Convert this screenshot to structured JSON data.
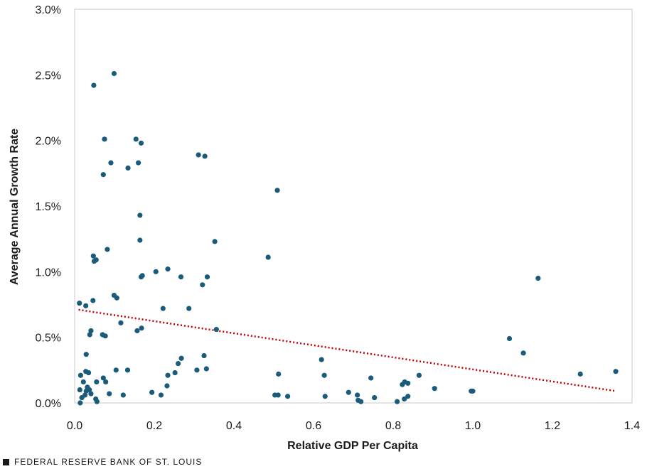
{
  "chart_data": {
    "type": "scatter",
    "xlabel": "Relative GDP Per Capita",
    "ylabel": "Average Annual Growth Rate",
    "xlim": [
      0,
      1.4
    ],
    "ylim": [
      0,
      3.0
    ],
    "x_ticks": [
      0,
      0.2,
      0.4,
      0.6,
      0.8,
      1.0,
      1.2,
      1.4
    ],
    "x_tick_labels": [
      "0.0",
      "0.2",
      "0.4",
      "0.6",
      "0.8",
      "1.0",
      "1.2",
      "1.4"
    ],
    "y_ticks": [
      0,
      0.5,
      1.0,
      1.5,
      2.0,
      2.5,
      3.0
    ],
    "y_tick_labels": [
      "0.0%",
      "0.5%",
      "1.0%",
      "1.5%",
      "2.0%",
      "2.5%",
      "3.0%"
    ],
    "grid": false,
    "point_color": "#1b5b7a",
    "trend_color": "#c00000",
    "trendline": {
      "style": "dotted",
      "from": [
        0.01,
        0.71
      ],
      "to": [
        1.36,
        0.09
      ]
    },
    "points": [
      [
        0.099,
        2.51
      ],
      [
        0.048,
        2.42
      ],
      [
        0.075,
        2.01
      ],
      [
        0.154,
        2.01
      ],
      [
        0.167,
        1.98
      ],
      [
        0.091,
        1.83
      ],
      [
        0.16,
        1.83
      ],
      [
        0.134,
        1.79
      ],
      [
        0.072,
        1.74
      ],
      [
        0.311,
        1.89
      ],
      [
        0.327,
        1.88
      ],
      [
        0.509,
        1.62
      ],
      [
        0.164,
        1.43
      ],
      [
        0.352,
        1.23
      ],
      [
        0.164,
        1.24
      ],
      [
        0.082,
        1.17
      ],
      [
        0.047,
        1.12
      ],
      [
        0.054,
        1.09
      ],
      [
        0.049,
        1.08
      ],
      [
        0.486,
        1.11
      ],
      [
        0.234,
        1.02
      ],
      [
        0.204,
        1.0
      ],
      [
        0.17,
        0.97
      ],
      [
        0.167,
        0.96
      ],
      [
        0.267,
        0.96
      ],
      [
        0.333,
        0.96
      ],
      [
        0.321,
        0.9
      ],
      [
        1.164,
        0.95
      ],
      [
        0.099,
        0.82
      ],
      [
        0.106,
        0.8
      ],
      [
        0.012,
        0.76
      ],
      [
        0.028,
        0.74
      ],
      [
        0.046,
        0.78
      ],
      [
        0.222,
        0.72
      ],
      [
        0.287,
        0.72
      ],
      [
        0.116,
        0.61
      ],
      [
        0.168,
        0.57
      ],
      [
        0.157,
        0.55
      ],
      [
        0.356,
        0.56
      ],
      [
        0.041,
        0.55
      ],
      [
        0.038,
        0.52
      ],
      [
        0.07,
        0.52
      ],
      [
        0.077,
        0.51
      ],
      [
        1.092,
        0.49
      ],
      [
        0.029,
        0.37
      ],
      [
        1.127,
        0.38
      ],
      [
        0.325,
        0.36
      ],
      [
        0.268,
        0.34
      ],
      [
        0.62,
        0.33
      ],
      [
        0.26,
        0.3
      ],
      [
        0.015,
        0.21
      ],
      [
        0.028,
        0.24
      ],
      [
        0.035,
        0.23
      ],
      [
        0.133,
        0.25
      ],
      [
        0.104,
        0.25
      ],
      [
        0.307,
        0.25
      ],
      [
        0.331,
        0.26
      ],
      [
        0.234,
        0.21
      ],
      [
        0.252,
        0.23
      ],
      [
        0.512,
        0.22
      ],
      [
        0.627,
        0.21
      ],
      [
        0.744,
        0.19
      ],
      [
        0.865,
        0.21
      ],
      [
        1.27,
        0.22
      ],
      [
        1.359,
        0.24
      ],
      [
        0.072,
        0.19
      ],
      [
        0.078,
        0.16
      ],
      [
        0.055,
        0.16
      ],
      [
        0.022,
        0.16
      ],
      [
        0.232,
        0.13
      ],
      [
        0.829,
        0.16
      ],
      [
        0.837,
        0.15
      ],
      [
        0.823,
        0.14
      ],
      [
        0.032,
        0.12
      ],
      [
        0.013,
        0.1
      ],
      [
        0.037,
        0.1
      ],
      [
        0.029,
        0.09
      ],
      [
        0.904,
        0.11
      ],
      [
        0.996,
        0.09
      ],
      [
        1.0,
        0.09
      ],
      [
        0.194,
        0.08
      ],
      [
        0.041,
        0.07
      ],
      [
        0.087,
        0.07
      ],
      [
        0.122,
        0.06
      ],
      [
        0.217,
        0.06
      ],
      [
        0.503,
        0.06
      ],
      [
        0.511,
        0.06
      ],
      [
        0.535,
        0.05
      ],
      [
        0.629,
        0.05
      ],
      [
        0.688,
        0.08
      ],
      [
        0.71,
        0.06
      ],
      [
        0.837,
        0.05
      ],
      [
        0.828,
        0.03
      ],
      [
        0.753,
        0.04
      ],
      [
        0.018,
        0.04
      ],
      [
        0.026,
        0.06
      ],
      [
        0.053,
        0.03
      ],
      [
        0.056,
        0.01
      ],
      [
        0.014,
        0.0
      ],
      [
        0.712,
        0.02
      ],
      [
        0.719,
        0.01
      ],
      [
        0.81,
        0.01
      ]
    ]
  },
  "footer": {
    "source": "FEDERAL RESERVE BANK OF ST. LOUIS",
    "marker_color": "#1a1a1a"
  }
}
